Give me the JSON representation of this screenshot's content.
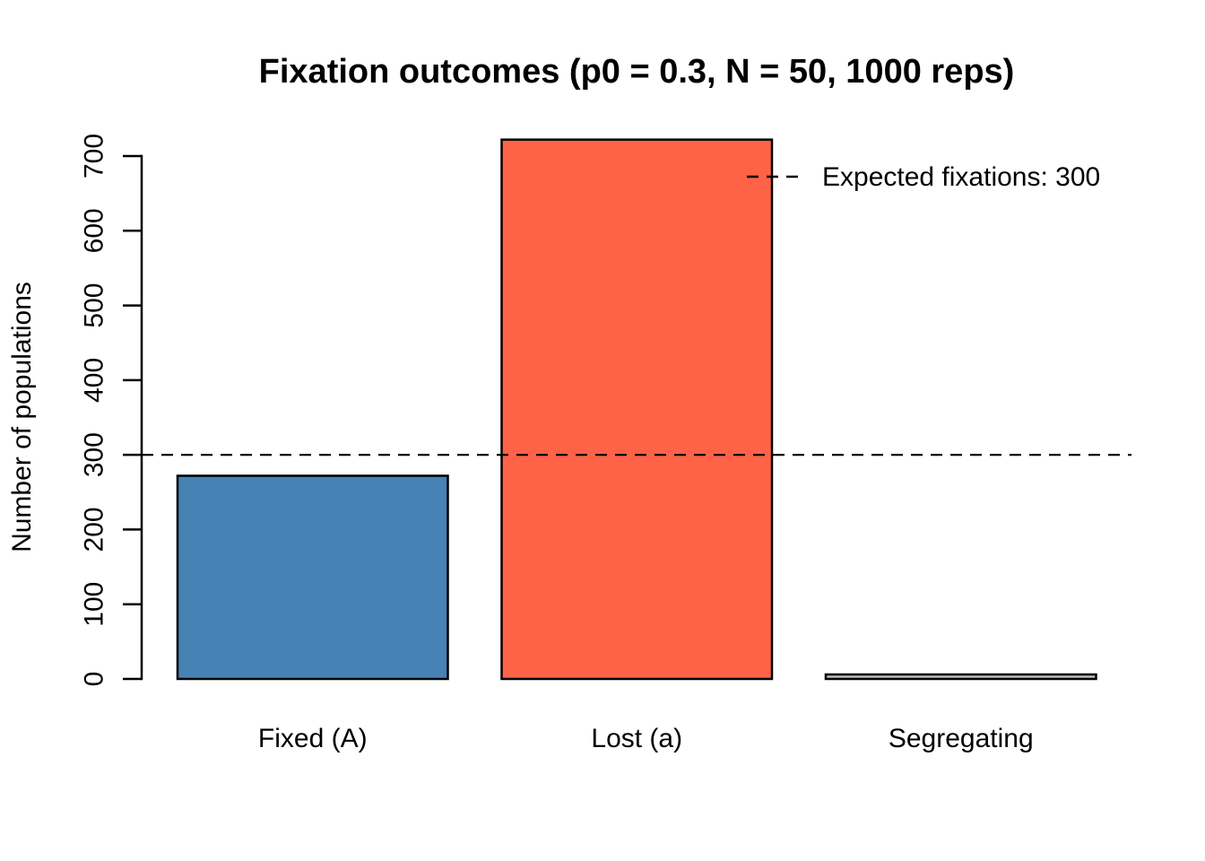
{
  "chart_data": {
    "type": "bar",
    "title": "Fixation outcomes (p0 = 0.3, N = 50, 1000 reps)",
    "xlabel": "",
    "ylabel": "Number of populations",
    "categories": [
      "Fixed (A)",
      "Lost (a)",
      "Segregating"
    ],
    "values": [
      272,
      722,
      6
    ],
    "bar_colors": [
      "#4682B4",
      "#FF6347",
      "#BEBEBE"
    ],
    "bar_border_color": "#000000",
    "ylim": [
      0,
      700
    ],
    "y_ticks": [
      0,
      100,
      200,
      300,
      400,
      500,
      600,
      700
    ],
    "grid": false,
    "background": "#FFFFFF",
    "reference_line": {
      "value": 300,
      "style": "dashed",
      "color": "#000000"
    },
    "legend": {
      "position": "topright",
      "boxed": false,
      "entries": [
        {
          "label": "Expected fixations: 300",
          "line_style": "dashed",
          "line_color": "#000000"
        }
      ]
    }
  }
}
